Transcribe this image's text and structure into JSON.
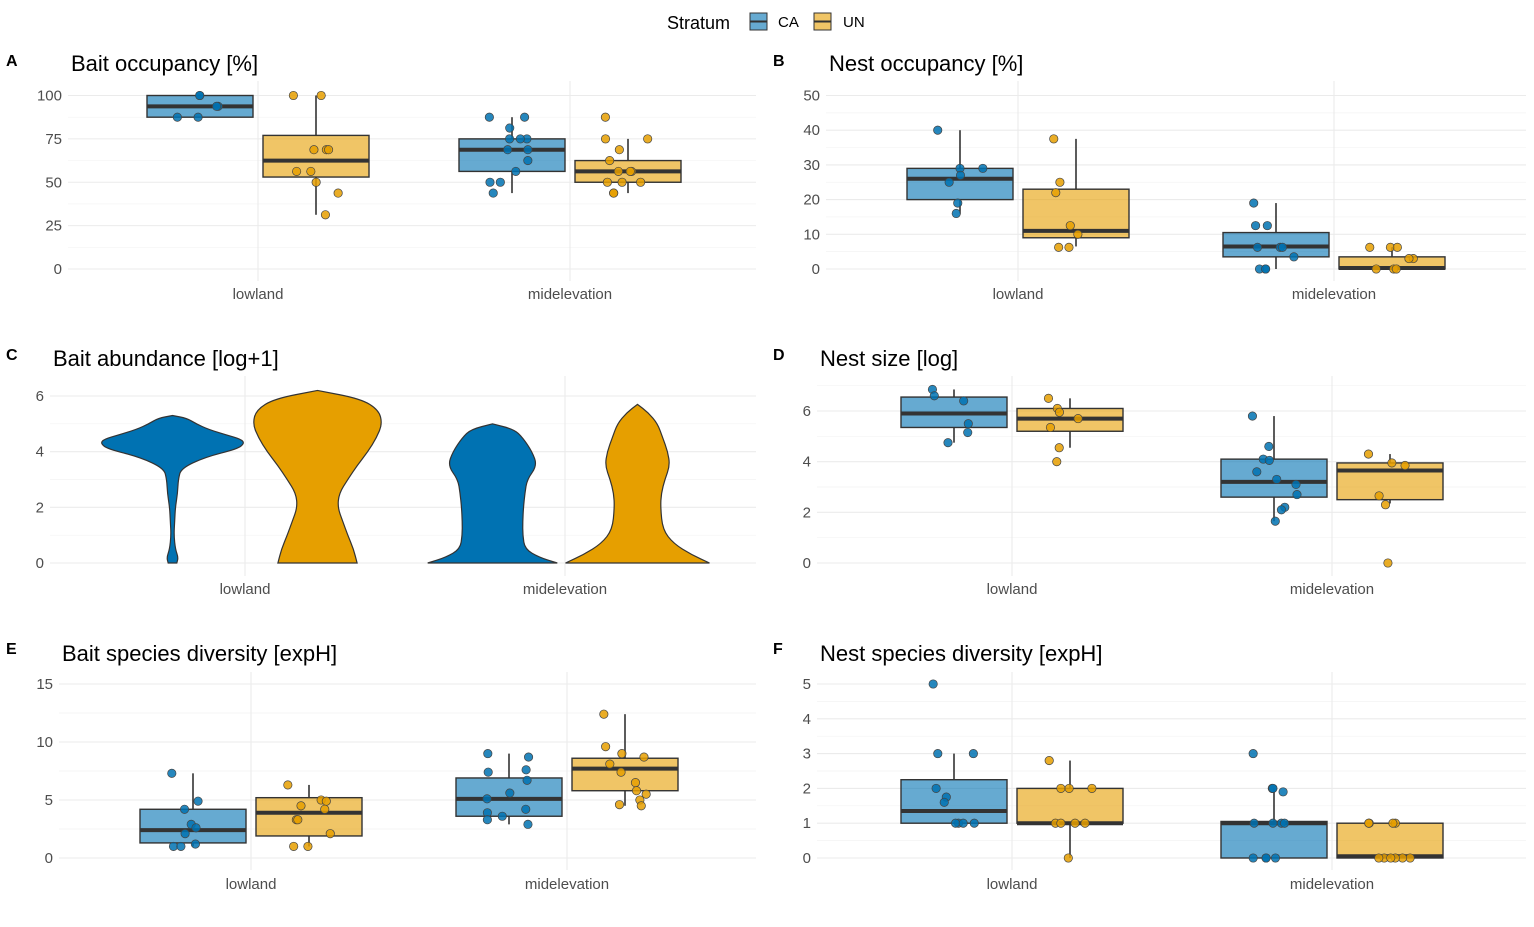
{
  "legend": {
    "title": "Stratum",
    "position": "top-center",
    "entries": [
      {
        "key": "CA",
        "label": "CA",
        "fill": "#0072B2"
      },
      {
        "key": "UN",
        "label": "UN",
        "fill": "#E69F00"
      }
    ]
  },
  "colors": {
    "CA": "#0072B2",
    "UN": "#E69F00",
    "box_line": "#333333",
    "grid": "#ebebeb"
  },
  "chart_data": [
    {
      "tag": "A",
      "title": "Bait occupancy [%]",
      "type": "box",
      "categories": [
        "lowland",
        "midelevation"
      ],
      "ylim": [
        0,
        100
      ],
      "yticks": [
        0,
        25,
        50,
        75,
        100
      ],
      "series": [
        {
          "name": "CA",
          "stats": [
            {
              "q1": 87.5,
              "median": 93.75,
              "q3": 100,
              "lo": 87.5,
              "hi": 100,
              "points": [
                87.5,
                87.5,
                93.75,
                93.75,
                100,
                100
              ]
            },
            {
              "q1": 56.25,
              "median": 68.75,
              "q3": 75,
              "lo": 43.75,
              "hi": 87.5,
              "points": [
                87.5,
                87.5,
                81.25,
                75,
                75,
                75,
                68.75,
                68.75,
                62.5,
                56.25,
                50,
                50,
                43.75
              ]
            }
          ]
        },
        {
          "name": "UN",
          "stats": [
            {
              "q1": 53,
              "median": 62.5,
              "q3": 77,
              "lo": 31.25,
              "hi": 100,
              "points": [
                100,
                100,
                68.75,
                68.75,
                68.75,
                56.25,
                56.25,
                50,
                43.75,
                31.25
              ]
            },
            {
              "q1": 50,
              "median": 56.25,
              "q3": 62.5,
              "lo": 43.75,
              "hi": 75,
              "points": [
                87.5,
                75,
                75,
                68.75,
                62.5,
                56.25,
                56.25,
                56.25,
                50,
                50,
                50,
                43.75,
                43.75
              ]
            }
          ]
        }
      ]
    },
    {
      "tag": "B",
      "title": "Nest occupancy [%]",
      "type": "box",
      "categories": [
        "lowland",
        "midelevation"
      ],
      "ylim": [
        0,
        50
      ],
      "yticks": [
        0,
        10,
        20,
        30,
        40,
        50
      ],
      "series": [
        {
          "name": "CA",
          "stats": [
            {
              "q1": 20,
              "median": 26,
              "q3": 29,
              "lo": 16,
              "hi": 40,
              "points": [
                40,
                29,
                29,
                27,
                25,
                19,
                16
              ]
            },
            {
              "q1": 3.5,
              "median": 6.5,
              "q3": 10.5,
              "lo": 0,
              "hi": 19,
              "points": [
                19,
                12.5,
                12.5,
                6.25,
                6.25,
                6.25,
                3.5,
                0,
                0,
                0
              ]
            }
          ]
        },
        {
          "name": "UN",
          "stats": [
            {
              "q1": 9,
              "median": 11,
              "q3": 23,
              "lo": 6.5,
              "hi": 37.5,
              "points": [
                37.5,
                25,
                22,
                12.5,
                10,
                6.25,
                6.25
              ]
            },
            {
              "q1": 0,
              "median": 0.3,
              "q3": 3.5,
              "lo": 0,
              "hi": 6.25,
              "points": [
                6.25,
                6.25,
                6.25,
                3,
                3,
                0,
                0,
                0
              ]
            }
          ]
        }
      ]
    },
    {
      "tag": "C",
      "title": "Bait abundance [log+1]",
      "type": "violin",
      "categories": [
        "lowland",
        "midelevation"
      ],
      "ylim": [
        0,
        6.2
      ],
      "yticks": [
        0,
        2,
        4,
        6
      ],
      "series": [
        {
          "name": "CA",
          "violins": [
            {
              "profile": [
                [
                  0,
                  0.06
                ],
                [
                  0.2,
                  0.08
                ],
                [
                  0.5,
                  0.04
                ],
                [
                  1,
                  0.02
                ],
                [
                  1.5,
                  0.03
                ],
                [
                  2,
                  0.04
                ],
                [
                  2.5,
                  0.07
                ],
                [
                  3,
                  0.08
                ],
                [
                  3.4,
                  0.12
                ],
                [
                  3.8,
                  0.45
                ],
                [
                  4.1,
                  0.9
                ],
                [
                  4.3,
                  1.0
                ],
                [
                  4.45,
                  0.95
                ],
                [
                  4.6,
                  0.75
                ],
                [
                  4.8,
                  0.5
                ],
                [
                  5.0,
                  0.33
                ],
                [
                  5.2,
                  0.2
                ],
                [
                  5.3,
                  0
                ]
              ]
            },
            {
              "profile": [
                [
                  0,
                  0.9
                ],
                [
                  0.2,
                  0.65
                ],
                [
                  0.5,
                  0.45
                ],
                [
                  1,
                  0.42
                ],
                [
                  1.5,
                  0.42
                ],
                [
                  2,
                  0.43
                ],
                [
                  2.5,
                  0.45
                ],
                [
                  3,
                  0.48
                ],
                [
                  3.5,
                  0.62
                ],
                [
                  4.0,
                  0.55
                ],
                [
                  4.5,
                  0.42
                ],
                [
                  4.8,
                  0.3
                ],
                [
                  5.0,
                  0
                ]
              ]
            }
          ]
        },
        {
          "name": "UN",
          "violins": [
            {
              "profile": [
                [
                  0,
                  0.55
                ],
                [
                  0.5,
                  0.5
                ],
                [
                  1,
                  0.42
                ],
                [
                  1.5,
                  0.35
                ],
                [
                  2,
                  0.28
                ],
                [
                  2.5,
                  0.3
                ],
                [
                  3,
                  0.42
                ],
                [
                  3.5,
                  0.55
                ],
                [
                  4,
                  0.7
                ],
                [
                  4.5,
                  0.82
                ],
                [
                  5,
                  0.9
                ],
                [
                  5.5,
                  0.85
                ],
                [
                  5.9,
                  0.6
                ],
                [
                  6.2,
                  0
                ]
              ]
            },
            {
              "profile": [
                [
                  0,
                  1.0
                ],
                [
                  0.3,
                  0.75
                ],
                [
                  0.7,
                  0.5
                ],
                [
                  1.2,
                  0.35
                ],
                [
                  2,
                  0.32
                ],
                [
                  2.5,
                  0.33
                ],
                [
                  3,
                  0.38
                ],
                [
                  3.5,
                  0.45
                ],
                [
                  4,
                  0.42
                ],
                [
                  4.5,
                  0.35
                ],
                [
                  5,
                  0.28
                ],
                [
                  5.4,
                  0.15
                ],
                [
                  5.7,
                  0
                ]
              ]
            }
          ]
        }
      ]
    },
    {
      "tag": "D",
      "title": "Nest size [log]",
      "type": "box",
      "categories": [
        "lowland",
        "midelevation"
      ],
      "ylim": [
        0,
        7
      ],
      "yticks": [
        0,
        2,
        4,
        6
      ],
      "series": [
        {
          "name": "CA",
          "stats": [
            {
              "q1": 5.35,
              "median": 5.9,
              "q3": 6.55,
              "lo": 4.75,
              "hi": 6.85,
              "points": [
                6.85,
                6.6,
                6.4,
                5.5,
                5.15,
                4.75
              ]
            },
            {
              "q1": 2.6,
              "median": 3.2,
              "q3": 4.1,
              "lo": 1.65,
              "hi": 5.8,
              "points": [
                5.8,
                4.6,
                4.1,
                4.05,
                3.6,
                3.3,
                3.1,
                2.7,
                2.2,
                2.1,
                1.65
              ]
            }
          ]
        },
        {
          "name": "UN",
          "stats": [
            {
              "q1": 5.2,
              "median": 5.7,
              "q3": 6.1,
              "lo": 4.55,
              "hi": 6.5,
              "points": [
                6.5,
                6.1,
                5.95,
                5.7,
                5.35,
                4.55,
                4.0
              ]
            },
            {
              "q1": 2.5,
              "median": 3.65,
              "q3": 3.95,
              "lo": 2.35,
              "hi": 4.3,
              "points": [
                4.3,
                3.95,
                3.85,
                2.65,
                2.3,
                0
              ]
            }
          ]
        }
      ]
    },
    {
      "tag": "E",
      "title": "Bait species diversity [expH]",
      "type": "box",
      "categories": [
        "lowland",
        "midelevation"
      ],
      "ylim": [
        0,
        15
      ],
      "yticks": [
        0,
        5,
        10,
        15
      ],
      "series": [
        {
          "name": "CA",
          "stats": [
            {
              "q1": 1.3,
              "median": 2.4,
              "q3": 4.2,
              "lo": 1.0,
              "hi": 7.3,
              "points": [
                7.3,
                4.9,
                4.2,
                2.9,
                2.6,
                2.1,
                1.2,
                1.0,
                1.0
              ]
            },
            {
              "q1": 3.6,
              "median": 5.1,
              "q3": 6.9,
              "lo": 2.9,
              "hi": 9.0,
              "points": [
                9.0,
                8.7,
                7.6,
                7.4,
                6.7,
                5.6,
                5.1,
                4.2,
                3.9,
                3.6,
                3.3,
                2.9
              ]
            }
          ]
        },
        {
          "name": "UN",
          "stats": [
            {
              "q1": 1.9,
              "median": 3.9,
              "q3": 5.2,
              "lo": 1.0,
              "hi": 6.3,
              "points": [
                6.3,
                5.0,
                4.9,
                4.5,
                4.2,
                3.3,
                3.3,
                2.1,
                1.0,
                1.0
              ]
            },
            {
              "q1": 5.8,
              "median": 7.7,
              "q3": 8.6,
              "lo": 4.5,
              "hi": 12.4,
              "points": [
                12.4,
                9.6,
                9.0,
                8.7,
                8.1,
                7.4,
                6.5,
                5.8,
                5.5,
                5.0,
                4.6,
                4.5
              ]
            }
          ]
        }
      ]
    },
    {
      "tag": "F",
      "title": "Nest species diversity [expH]",
      "type": "box",
      "categories": [
        "lowland",
        "midelevation"
      ],
      "ylim": [
        0,
        5
      ],
      "yticks": [
        0,
        1,
        2,
        3,
        4,
        5
      ],
      "series": [
        {
          "name": "CA",
          "stats": [
            {
              "q1": 1.0,
              "median": 1.35,
              "q3": 2.25,
              "lo": 1.0,
              "hi": 3.0,
              "points": [
                5.0,
                3.0,
                3.0,
                2.0,
                1.75,
                1.6,
                1.0,
                1.0,
                1.0,
                1.0
              ]
            },
            {
              "q1": 0,
              "median": 1.0,
              "q3": 1.05,
              "lo": 0,
              "hi": 2.0,
              "points": [
                3.0,
                2.0,
                2.0,
                1.9,
                1.0,
                1.0,
                1.0,
                1.0,
                0,
                0,
                0,
                0
              ]
            }
          ]
        },
        {
          "name": "UN",
          "stats": [
            {
              "q1": 1.0,
              "median": 1.0,
              "q3": 2.0,
              "lo": 0,
              "hi": 2.8,
              "points": [
                2.8,
                2.0,
                2.0,
                2.0,
                1.0,
                1.0,
                1.0,
                1.0,
                0
              ]
            },
            {
              "q1": 0,
              "median": 0.05,
              "q3": 1.0,
              "lo": 0,
              "hi": 1.0,
              "points": [
                1.0,
                1.0,
                1.0,
                1.0,
                0,
                0,
                0,
                0,
                0,
                0
              ]
            }
          ]
        }
      ]
    }
  ]
}
